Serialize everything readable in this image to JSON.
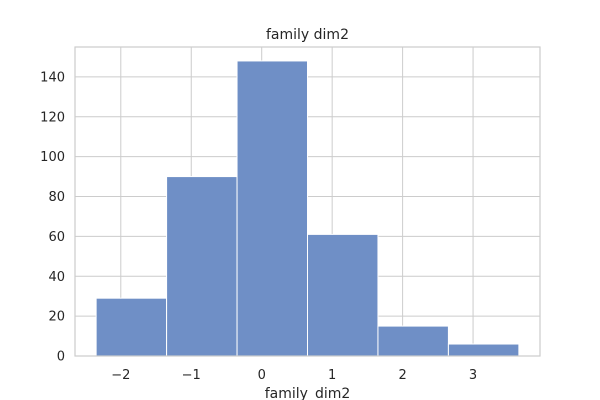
{
  "chart_data": {
    "type": "histogram",
    "title": "family dim2",
    "xlabel": "family_dim2",
    "ylabel": "",
    "xlim": [
      -2.65,
      3.95
    ],
    "ylim": [
      0,
      155
    ],
    "x_ticks": [
      -2,
      -1,
      0,
      1,
      2,
      3
    ],
    "x_tick_labels": [
      "−2",
      "−1",
      "0",
      "1",
      "2",
      "3"
    ],
    "y_ticks": [
      0,
      20,
      40,
      60,
      80,
      100,
      120,
      140
    ],
    "y_tick_labels": [
      "0",
      "20",
      "40",
      "60",
      "80",
      "100",
      "120",
      "140"
    ],
    "bins": [
      {
        "x0": -2.35,
        "x1": -1.35,
        "count": 29
      },
      {
        "x0": -1.35,
        "x1": -0.35,
        "count": 90
      },
      {
        "x0": -0.35,
        "x1": 0.65,
        "count": 148
      },
      {
        "x0": 0.65,
        "x1": 1.65,
        "count": 61
      },
      {
        "x0": 1.65,
        "x1": 2.65,
        "count": 15
      },
      {
        "x0": 2.65,
        "x1": 3.65,
        "count": 6
      }
    ],
    "bar_color": "#6f8fc6",
    "grid": true,
    "legend": "none"
  }
}
